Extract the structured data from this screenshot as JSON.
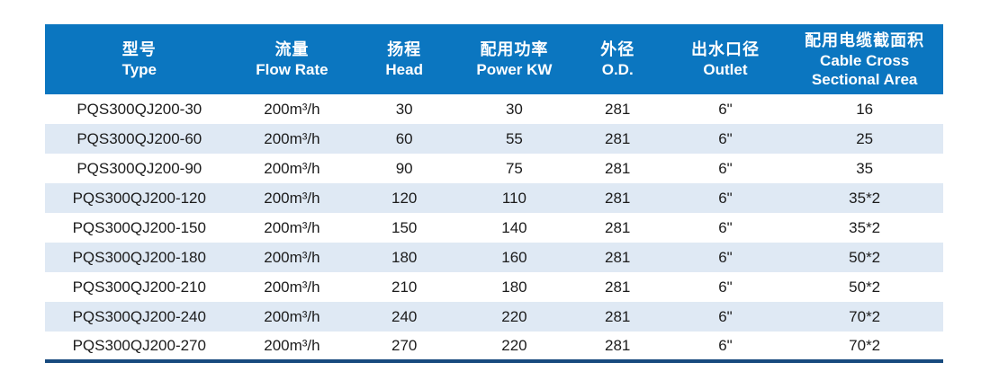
{
  "colors": {
    "header_bg": "#0b76c0",
    "header_text": "#ffffff",
    "row_bg": "#ffffff",
    "row_alt_bg": "#dfe9f4",
    "body_text": "#1c1c1c",
    "bottom_rule": "#174a7e"
  },
  "table": {
    "columns": [
      {
        "id": "type",
        "zh": "型号",
        "en": "Type"
      },
      {
        "id": "flow",
        "zh": "流量",
        "en": "Flow Rate"
      },
      {
        "id": "head",
        "zh": "扬程",
        "en": "Head"
      },
      {
        "id": "power",
        "zh": "配用功率",
        "en": "Power KW"
      },
      {
        "id": "od",
        "zh": "外径",
        "en": "O.D."
      },
      {
        "id": "outlet",
        "zh": "出水口径",
        "en": "Outlet"
      },
      {
        "id": "cable",
        "zh": "配用电缆截面积",
        "en": "Cable Cross\nSectional Area"
      }
    ],
    "rows": [
      [
        "PQS300QJ200-30",
        "200m³/h",
        "30",
        "30",
        "281",
        "6\"",
        "16"
      ],
      [
        "PQS300QJ200-60",
        "200m³/h",
        "60",
        "55",
        "281",
        "6\"",
        "25"
      ],
      [
        "PQS300QJ200-90",
        "200m³/h",
        "90",
        "75",
        "281",
        "6\"",
        "35"
      ],
      [
        "PQS300QJ200-120",
        "200m³/h",
        "120",
        "110",
        "281",
        "6\"",
        "35*2"
      ],
      [
        "PQS300QJ200-150",
        "200m³/h",
        "150",
        "140",
        "281",
        "6\"",
        "35*2"
      ],
      [
        "PQS300QJ200-180",
        "200m³/h",
        "180",
        "160",
        "281",
        "6\"",
        "50*2"
      ],
      [
        "PQS300QJ200-210",
        "200m³/h",
        "210",
        "180",
        "281",
        "6\"",
        "50*2"
      ],
      [
        "PQS300QJ200-240",
        "200m³/h",
        "240",
        "220",
        "281",
        "6\"",
        "70*2"
      ],
      [
        "PQS300QJ200-270",
        "200m³/h",
        "270",
        "220",
        "281",
        "6\"",
        "70*2"
      ]
    ]
  }
}
